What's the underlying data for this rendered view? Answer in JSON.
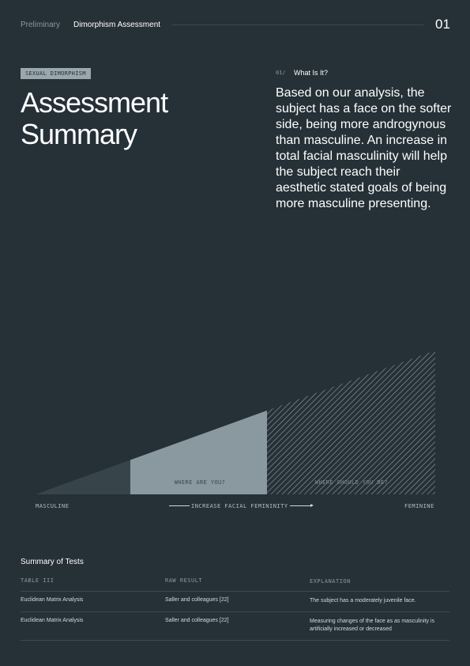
{
  "header": {
    "crumb_prev": "Preliminary",
    "crumb_current": "Dimorphism Assessment",
    "page_number": "01"
  },
  "hero": {
    "tag": "SEXUAL DIMORPHISM",
    "title_line1": "Assessment",
    "title_line2": "Summary"
  },
  "section": {
    "number": "01/",
    "title": "What Is It?",
    "body": "Based on our analysis, the subject has a face on the softer side, being more androgynous than masculine. An increase in total facial masculinity will help the subject reach their aesthetic stated goals of being more masculine presenting."
  },
  "chart": {
    "left_label": "MASCULINE",
    "right_label": "FEMININE",
    "axis_label": "INCREASE FACIAL FEMINI­NITY",
    "axis_text": "INCREASE FACIAL FEMININITY",
    "current_label": "WHERE ARE YOU?",
    "target_label": "WHERE SHOULD YOU BE?",
    "colors": {
      "dark_band": "#37454b",
      "current_band": "#8a989f",
      "target_hatch": "#8a989f"
    }
  },
  "summary": {
    "title": "Summary of Tests",
    "columns": [
      "TABLE III",
      "RAW RESULT",
      "EXPLANATION"
    ],
    "rows": [
      [
        "Euclidean Matrix Analysis",
        "Saller and colleagues [22]",
        "The subject has a moderately juvenile face."
      ],
      [
        "Euclidean Matrix Analysis",
        "Saller and colleagues [22]",
        "Measuring changes of the face as as masculinity is artificially increased or decreased"
      ]
    ]
  }
}
